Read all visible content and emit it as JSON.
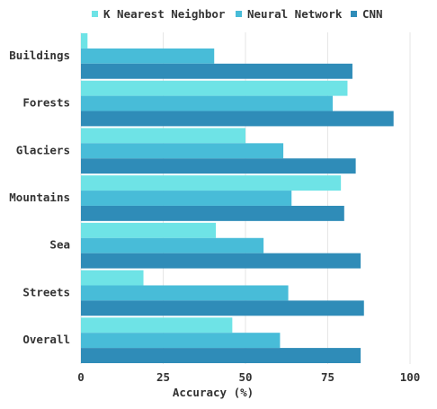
{
  "chart_data": {
    "type": "bar",
    "orientation": "horizontal",
    "categories": [
      "Buildings",
      "Forests",
      "Glaciers",
      "Mountains",
      "Sea",
      "Streets",
      "Overall"
    ],
    "series": [
      {
        "name": "K Nearest Neighbor",
        "color": "#6ee3e6",
        "values": [
          2,
          81,
          50,
          79,
          41,
          19,
          46
        ]
      },
      {
        "name": "Neural Network",
        "color": "#48bcd8",
        "values": [
          40.5,
          76.5,
          61.5,
          64,
          55.5,
          63,
          60.5
        ]
      },
      {
        "name": "CNN",
        "color": "#2f8cb8",
        "values": [
          82.5,
          95,
          83.5,
          80,
          85,
          86,
          85
        ]
      }
    ],
    "xlabel": "Accuracy (%)",
    "ylabel": "",
    "xlim": [
      0,
      100
    ],
    "xticks": [
      0,
      25,
      50,
      75,
      100
    ],
    "grid": "vertical",
    "legend": "top"
  }
}
